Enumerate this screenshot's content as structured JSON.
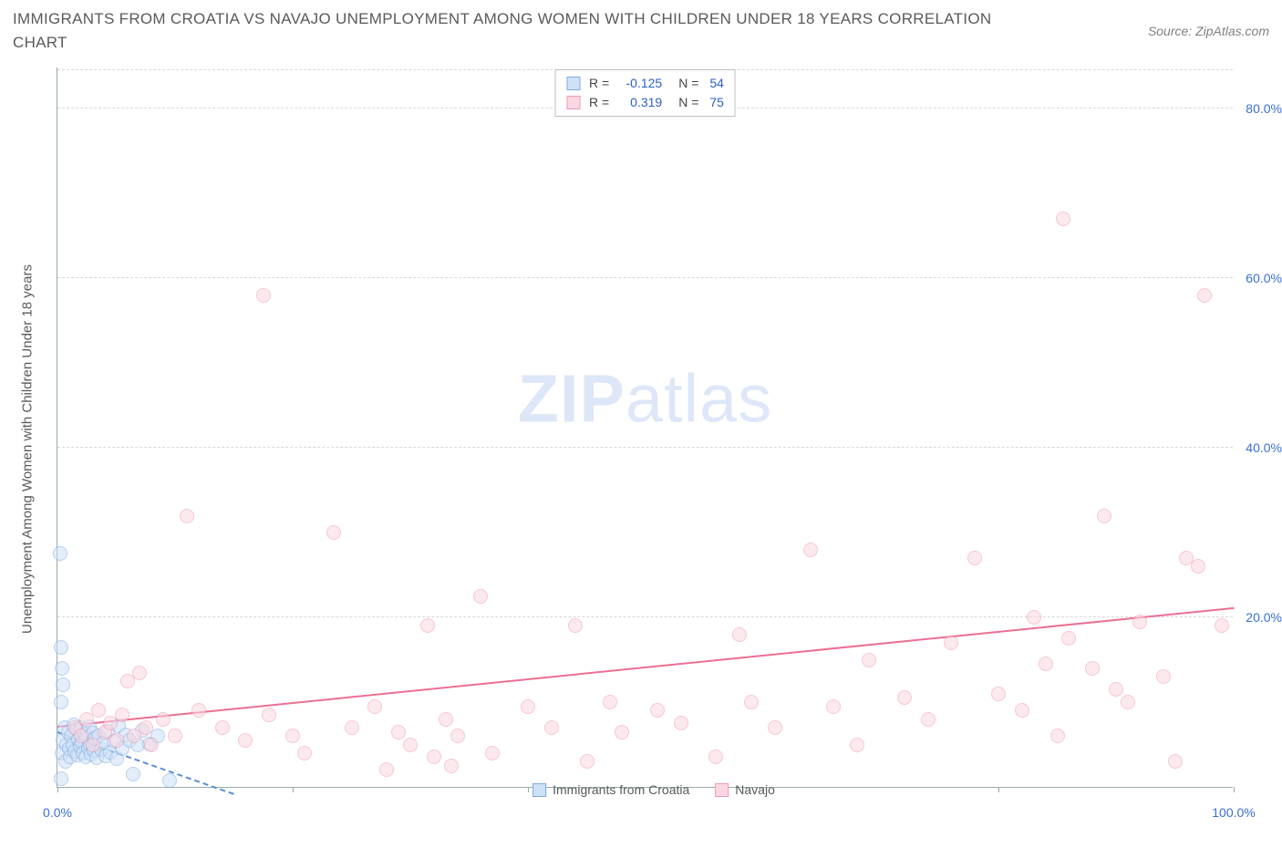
{
  "title": "IMMIGRANTS FROM CROATIA VS NAVAJO UNEMPLOYMENT AMONG WOMEN WITH CHILDREN UNDER 18 YEARS CORRELATION CHART",
  "source": "Source: ZipAtlas.com",
  "watermark_a": "ZIP",
  "watermark_b": "atlas",
  "chart": {
    "type": "scatter",
    "ylabel": "Unemployment Among Women with Children Under 18 years",
    "xlim": [
      0,
      100
    ],
    "ylim": [
      0,
      85
    ],
    "xtick_positions": [
      0,
      20,
      40,
      60,
      80,
      100
    ],
    "xtick_labels": [
      "0.0%",
      "",
      "",
      "",
      "",
      "100.0%"
    ],
    "ytick_positions": [
      20,
      40,
      60,
      80
    ],
    "ytick_labels": [
      "20.0%",
      "40.0%",
      "60.0%",
      "80.0%"
    ],
    "gridline_color": "#d8d8d8",
    "axis_color": "#99aaaa",
    "tick_label_color": "#3b6fd4",
    "background_color": "#ffffff",
    "marker_radius": 8,
    "series": [
      {
        "name": "Immigrants from Croatia",
        "fill": "#cfe1f7",
        "stroke": "#7faae0",
        "fill_opacity": 0.55,
        "R": "-0.125",
        "N": "54",
        "trend": {
          "x1": 0,
          "y1": 6.3,
          "x2": 15,
          "y2": -1.0,
          "color": "#5a8fd6",
          "dashed": true
        },
        "points": [
          [
            0.2,
            27.5
          ],
          [
            0.3,
            16.5
          ],
          [
            0.4,
            14.0
          ],
          [
            0.5,
            12.0
          ],
          [
            0.3,
            1.0
          ],
          [
            0.3,
            10.0
          ],
          [
            0.4,
            4.0
          ],
          [
            0.5,
            5.5
          ],
          [
            0.6,
            7.0
          ],
          [
            0.7,
            3.0
          ],
          [
            0.8,
            5.0
          ],
          [
            0.9,
            6.5
          ],
          [
            1.0,
            4.5
          ],
          [
            1.1,
            3.5
          ],
          [
            1.2,
            6.0
          ],
          [
            1.3,
            5.0
          ],
          [
            1.4,
            7.3
          ],
          [
            1.5,
            4.2
          ],
          [
            1.6,
            6.8
          ],
          [
            1.7,
            3.8
          ],
          [
            1.8,
            5.6
          ],
          [
            1.9,
            4.8
          ],
          [
            2.0,
            7.0
          ],
          [
            2.1,
            5.3
          ],
          [
            2.2,
            4.0
          ],
          [
            2.3,
            6.2
          ],
          [
            2.4,
            3.6
          ],
          [
            2.5,
            5.8
          ],
          [
            2.6,
            4.6
          ],
          [
            2.7,
            7.1
          ],
          [
            2.8,
            5.0
          ],
          [
            2.9,
            3.9
          ],
          [
            3.0,
            6.4
          ],
          [
            3.1,
            4.3
          ],
          [
            3.2,
            5.7
          ],
          [
            3.3,
            3.4
          ],
          [
            3.5,
            6.0
          ],
          [
            3.7,
            4.4
          ],
          [
            3.9,
            5.2
          ],
          [
            4.1,
            3.7
          ],
          [
            4.3,
            6.6
          ],
          [
            4.5,
            4.1
          ],
          [
            4.8,
            5.4
          ],
          [
            5.0,
            3.3
          ],
          [
            5.2,
            7.2
          ],
          [
            5.5,
            4.5
          ],
          [
            5.8,
            6.1
          ],
          [
            6.1,
            5.5
          ],
          [
            6.4,
            1.5
          ],
          [
            6.8,
            4.9
          ],
          [
            7.2,
            6.7
          ],
          [
            7.8,
            5.1
          ],
          [
            8.5,
            6.0
          ],
          [
            9.5,
            0.8
          ]
        ]
      },
      {
        "name": "Navajo",
        "fill": "#fbd8e1",
        "stroke": "#f099b1",
        "fill_opacity": 0.55,
        "R": "0.319",
        "N": "75",
        "trend": {
          "x1": 0,
          "y1": 7.0,
          "x2": 100,
          "y2": 21.0,
          "color": "#ec6f93",
          "dashed": false
        },
        "points": [
          [
            1.5,
            7.0
          ],
          [
            2.0,
            6.0
          ],
          [
            2.5,
            8.0
          ],
          [
            3.0,
            5.0
          ],
          [
            3.5,
            9.0
          ],
          [
            4.0,
            6.5
          ],
          [
            4.5,
            7.5
          ],
          [
            5.0,
            5.5
          ],
          [
            5.5,
            8.5
          ],
          [
            6.0,
            12.5
          ],
          [
            6.5,
            6.0
          ],
          [
            7.0,
            13.5
          ],
          [
            7.5,
            7.0
          ],
          [
            8.0,
            5.0
          ],
          [
            9.0,
            8.0
          ],
          [
            10.0,
            6.0
          ],
          [
            11.0,
            32.0
          ],
          [
            12.0,
            9.0
          ],
          [
            14.0,
            7.0
          ],
          [
            16.0,
            5.5
          ],
          [
            17.5,
            58.0
          ],
          [
            18.0,
            8.5
          ],
          [
            20.0,
            6.0
          ],
          [
            21.0,
            4.0
          ],
          [
            23.5,
            30.0
          ],
          [
            25.0,
            7.0
          ],
          [
            27.0,
            9.5
          ],
          [
            28.0,
            2.0
          ],
          [
            29.0,
            6.5
          ],
          [
            30.0,
            5.0
          ],
          [
            31.5,
            19.0
          ],
          [
            32.0,
            3.5
          ],
          [
            33.0,
            8.0
          ],
          [
            33.5,
            2.5
          ],
          [
            34.0,
            6.0
          ],
          [
            36.0,
            22.5
          ],
          [
            37.0,
            4.0
          ],
          [
            40.0,
            9.5
          ],
          [
            42.0,
            7.0
          ],
          [
            44.0,
            19.0
          ],
          [
            45.0,
            3.0
          ],
          [
            47.0,
            10.0
          ],
          [
            48.0,
            6.5
          ],
          [
            51.0,
            9.0
          ],
          [
            53.0,
            7.5
          ],
          [
            56.0,
            3.5
          ],
          [
            58.0,
            18.0
          ],
          [
            59.0,
            10.0
          ],
          [
            61.0,
            7.0
          ],
          [
            64.0,
            28.0
          ],
          [
            66.0,
            9.5
          ],
          [
            68.0,
            5.0
          ],
          [
            69.0,
            15.0
          ],
          [
            72.0,
            10.5
          ],
          [
            74.0,
            8.0
          ],
          [
            76.0,
            17.0
          ],
          [
            78.0,
            27.0
          ],
          [
            80.0,
            11.0
          ],
          [
            82.0,
            9.0
          ],
          [
            83.0,
            20.0
          ],
          [
            84.0,
            14.5
          ],
          [
            85.0,
            6.0
          ],
          [
            85.5,
            67.0
          ],
          [
            86.0,
            17.5
          ],
          [
            88.0,
            14.0
          ],
          [
            89.0,
            32.0
          ],
          [
            90.0,
            11.5
          ],
          [
            91.0,
            10.0
          ],
          [
            92.0,
            19.5
          ],
          [
            94.0,
            13.0
          ],
          [
            95.0,
            3.0
          ],
          [
            96.0,
            27.0
          ],
          [
            97.0,
            26.0
          ],
          [
            97.5,
            58.0
          ],
          [
            99.0,
            19.0
          ]
        ]
      }
    ]
  }
}
